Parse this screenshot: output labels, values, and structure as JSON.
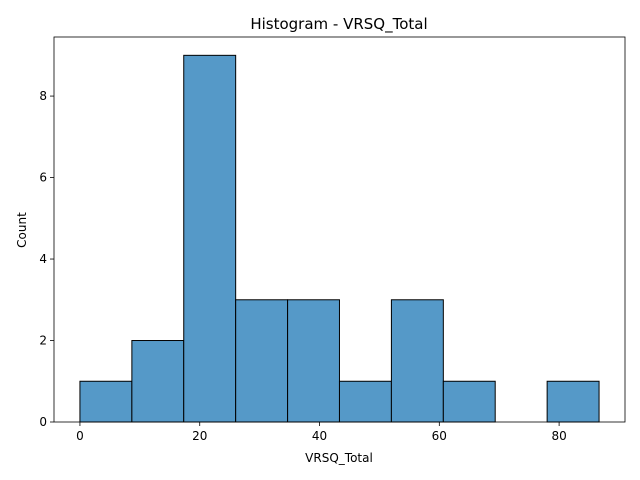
{
  "chart_data": {
    "type": "bar",
    "title": "Histogram - VRSQ_Total",
    "xlabel": "VRSQ_Total",
    "ylabel": "Count",
    "bin_edges": [
      0,
      8.67,
      17.33,
      26.0,
      34.67,
      43.33,
      52.0,
      60.67,
      69.33,
      78.0,
      86.67
    ],
    "values": [
      1,
      2,
      9,
      3,
      3,
      1,
      3,
      1,
      0,
      1
    ],
    "xlim": [
      -4.33,
      91.0
    ],
    "ylim": [
      0,
      9.45
    ],
    "xticks": [
      0,
      20,
      40,
      60,
      80
    ],
    "yticks": [
      0,
      2,
      4,
      6,
      8
    ],
    "grid": false,
    "bar_color": "#5599c8",
    "edge_color": "#000000"
  }
}
